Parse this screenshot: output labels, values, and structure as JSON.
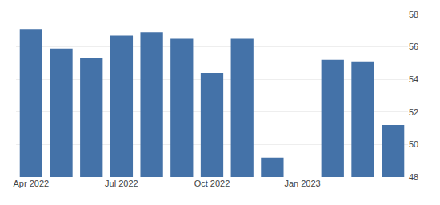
{
  "chart_data": {
    "type": "bar",
    "categories": [
      "Apr 2022",
      null,
      null,
      "Jul 2022",
      null,
      null,
      "Oct 2022",
      null,
      null,
      "Jan 2023",
      null,
      null,
      null
    ],
    "values": [
      57.1,
      55.9,
      55.3,
      56.7,
      56.9,
      56.5,
      54.4,
      56.5,
      49.2,
      null,
      55.2,
      55.1,
      51.2
    ],
    "color": "#4472a8",
    "ylim": [
      48,
      58
    ],
    "yticks": [
      48,
      50,
      52,
      54,
      56,
      58
    ],
    "grid": true
  }
}
